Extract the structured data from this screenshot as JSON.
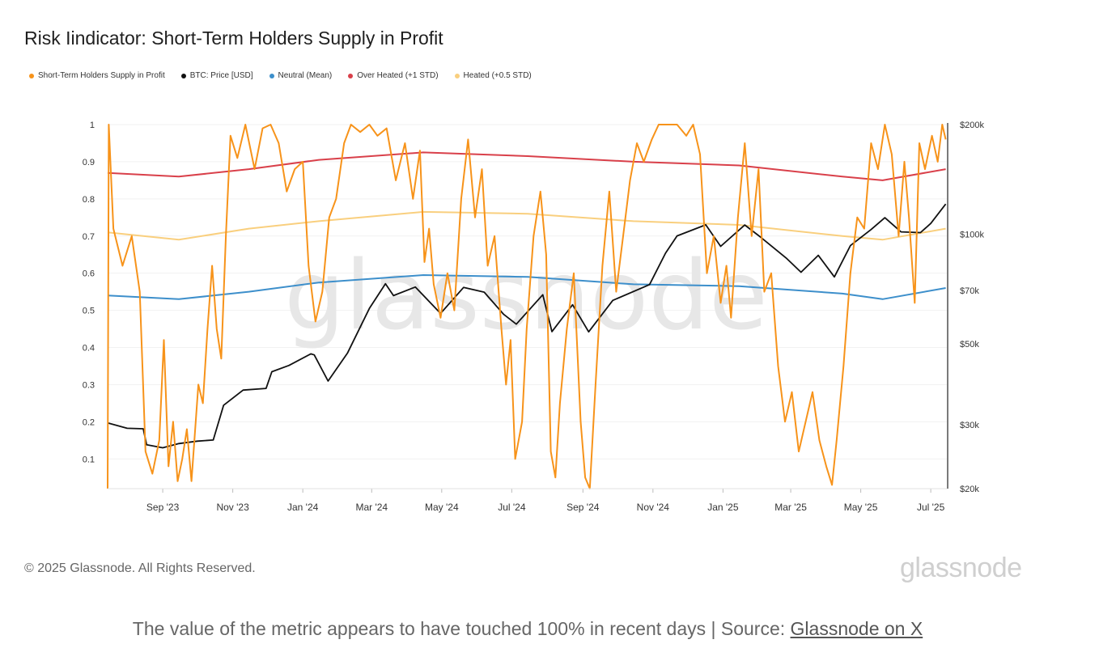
{
  "title": "Risk Iindicator: Short-Term Holders Supply in Profit",
  "legend": [
    {
      "label": "Short-Term Holders Supply in Profit",
      "color": "#f7931a"
    },
    {
      "label": "BTC: Price [USD]",
      "color": "#111111"
    },
    {
      "label": "Neutral (Mean)",
      "color": "#3d8fcb"
    },
    {
      "label": "Over Heated (+1 STD)",
      "color": "#d9404a"
    },
    {
      "label": "Heated (+0.5 STD)",
      "color": "#f9cf7e"
    }
  ],
  "watermark": "glassnode",
  "footer": {
    "copyright": "© 2025 Glassnode. All Rights Reserved.",
    "brand": "glassnode"
  },
  "caption": {
    "text": "The value of the metric appears to have touched 100% in recent days | Source: ",
    "link_text": "Glassnode on X"
  },
  "chart_data": {
    "type": "line",
    "x_tick_labels": [
      "Sep '23",
      "Nov '23",
      "Jan '24",
      "Mar '24",
      "May '24",
      "Jul '24",
      "Sep '24",
      "Nov '24",
      "Jan '25",
      "Mar '25",
      "May '25",
      "Jul '25"
    ],
    "xlim": [
      "2023-07-15",
      "2025-07-15"
    ],
    "y_left": {
      "ticks": [
        "0.1",
        "0.2",
        "0.3",
        "0.4",
        "0.5",
        "0.6",
        "0.7",
        "0.8",
        "0.9",
        "1"
      ],
      "ylim": [
        0.02,
        1.0
      ]
    },
    "y_right": {
      "ticks": [
        "$20k",
        "$30k",
        "$50k",
        "$70k",
        "$100k",
        "$200k"
      ],
      "scale": "log",
      "ylim": [
        20000,
        200000
      ]
    },
    "grid": true,
    "legend_position": "top-left",
    "series": [
      {
        "name": "Short-Term Holders Supply in Profit",
        "axis": "left",
        "color": "#f7931a",
        "points": [
          [
            "2023-07-15",
            0.02
          ],
          [
            "2023-07-16",
            1.0
          ],
          [
            "2023-07-20",
            0.72
          ],
          [
            "2023-07-28",
            0.62
          ],
          [
            "2023-08-05",
            0.7
          ],
          [
            "2023-08-12",
            0.55
          ],
          [
            "2023-08-17",
            0.12
          ],
          [
            "2023-08-23",
            0.06
          ],
          [
            "2023-08-29",
            0.15
          ],
          [
            "2023-09-02",
            0.42
          ],
          [
            "2023-09-06",
            0.08
          ],
          [
            "2023-09-10",
            0.2
          ],
          [
            "2023-09-14",
            0.04
          ],
          [
            "2023-09-18",
            0.1
          ],
          [
            "2023-09-22",
            0.18
          ],
          [
            "2023-09-26",
            0.04
          ],
          [
            "2023-10-02",
            0.3
          ],
          [
            "2023-10-06",
            0.25
          ],
          [
            "2023-10-10",
            0.45
          ],
          [
            "2023-10-14",
            0.62
          ],
          [
            "2023-10-18",
            0.45
          ],
          [
            "2023-10-22",
            0.37
          ],
          [
            "2023-10-26",
            0.7
          ],
          [
            "2023-10-30",
            0.97
          ],
          [
            "2023-11-05",
            0.91
          ],
          [
            "2023-11-12",
            1.0
          ],
          [
            "2023-11-20",
            0.88
          ],
          [
            "2023-11-27",
            0.99
          ],
          [
            "2023-12-04",
            1.0
          ],
          [
            "2023-12-11",
            0.95
          ],
          [
            "2023-12-18",
            0.82
          ],
          [
            "2023-12-25",
            0.88
          ],
          [
            "2024-01-01",
            0.9
          ],
          [
            "2024-01-06",
            0.62
          ],
          [
            "2024-01-12",
            0.47
          ],
          [
            "2024-01-18",
            0.55
          ],
          [
            "2024-01-24",
            0.75
          ],
          [
            "2024-01-30",
            0.8
          ],
          [
            "2024-02-06",
            0.95
          ],
          [
            "2024-02-12",
            1.0
          ],
          [
            "2024-02-20",
            0.98
          ],
          [
            "2024-02-28",
            1.0
          ],
          [
            "2024-03-06",
            0.97
          ],
          [
            "2024-03-14",
            0.99
          ],
          [
            "2024-03-22",
            0.85
          ],
          [
            "2024-03-30",
            0.95
          ],
          [
            "2024-04-06",
            0.8
          ],
          [
            "2024-04-12",
            0.93
          ],
          [
            "2024-04-16",
            0.63
          ],
          [
            "2024-04-20",
            0.72
          ],
          [
            "2024-04-24",
            0.57
          ],
          [
            "2024-04-30",
            0.48
          ],
          [
            "2024-05-06",
            0.6
          ],
          [
            "2024-05-12",
            0.5
          ],
          [
            "2024-05-18",
            0.8
          ],
          [
            "2024-05-24",
            0.96
          ],
          [
            "2024-05-30",
            0.75
          ],
          [
            "2024-06-05",
            0.88
          ],
          [
            "2024-06-10",
            0.62
          ],
          [
            "2024-06-16",
            0.7
          ],
          [
            "2024-06-22",
            0.45
          ],
          [
            "2024-06-26",
            0.3
          ],
          [
            "2024-06-30",
            0.42
          ],
          [
            "2024-07-04",
            0.1
          ],
          [
            "2024-07-10",
            0.2
          ],
          [
            "2024-07-14",
            0.45
          ],
          [
            "2024-07-20",
            0.7
          ],
          [
            "2024-07-26",
            0.82
          ],
          [
            "2024-07-31",
            0.65
          ],
          [
            "2024-08-04",
            0.12
          ],
          [
            "2024-08-08",
            0.05
          ],
          [
            "2024-08-12",
            0.25
          ],
          [
            "2024-08-18",
            0.45
          ],
          [
            "2024-08-24",
            0.6
          ],
          [
            "2024-08-30",
            0.2
          ],
          [
            "2024-09-03",
            0.05
          ],
          [
            "2024-09-07",
            0.02
          ],
          [
            "2024-09-12",
            0.3
          ],
          [
            "2024-09-18",
            0.62
          ],
          [
            "2024-09-24",
            0.82
          ],
          [
            "2024-09-30",
            0.55
          ],
          [
            "2024-10-06",
            0.7
          ],
          [
            "2024-10-12",
            0.85
          ],
          [
            "2024-10-18",
            0.95
          ],
          [
            "2024-10-24",
            0.9
          ],
          [
            "2024-10-31",
            0.96
          ],
          [
            "2024-11-06",
            1.0
          ],
          [
            "2024-11-14",
            1.0
          ],
          [
            "2024-11-22",
            1.0
          ],
          [
            "2024-11-30",
            0.97
          ],
          [
            "2024-12-06",
            1.0
          ],
          [
            "2024-12-12",
            0.92
          ],
          [
            "2024-12-18",
            0.6
          ],
          [
            "2024-12-24",
            0.7
          ],
          [
            "2024-12-30",
            0.52
          ],
          [
            "2025-01-04",
            0.62
          ],
          [
            "2025-01-08",
            0.48
          ],
          [
            "2025-01-14",
            0.75
          ],
          [
            "2025-01-20",
            0.95
          ],
          [
            "2025-01-26",
            0.7
          ],
          [
            "2025-02-01",
            0.88
          ],
          [
            "2025-02-06",
            0.55
          ],
          [
            "2025-02-12",
            0.6
          ],
          [
            "2025-02-18",
            0.35
          ],
          [
            "2025-02-24",
            0.2
          ],
          [
            "2025-03-02",
            0.28
          ],
          [
            "2025-03-08",
            0.12
          ],
          [
            "2025-03-14",
            0.2
          ],
          [
            "2025-03-20",
            0.28
          ],
          [
            "2025-03-26",
            0.15
          ],
          [
            "2025-04-01",
            0.08
          ],
          [
            "2025-04-06",
            0.03
          ],
          [
            "2025-04-10",
            0.15
          ],
          [
            "2025-04-16",
            0.35
          ],
          [
            "2025-04-22",
            0.6
          ],
          [
            "2025-04-28",
            0.75
          ],
          [
            "2025-05-04",
            0.72
          ],
          [
            "2025-05-10",
            0.95
          ],
          [
            "2025-05-16",
            0.88
          ],
          [
            "2025-05-22",
            1.0
          ],
          [
            "2025-05-28",
            0.92
          ],
          [
            "2025-06-03",
            0.7
          ],
          [
            "2025-06-08",
            0.9
          ],
          [
            "2025-06-12",
            0.75
          ],
          [
            "2025-06-17",
            0.52
          ],
          [
            "2025-06-21",
            0.95
          ],
          [
            "2025-06-26",
            0.88
          ],
          [
            "2025-07-02",
            0.97
          ],
          [
            "2025-07-07",
            0.9
          ],
          [
            "2025-07-11",
            1.0
          ],
          [
            "2025-07-14",
            0.96
          ]
        ]
      },
      {
        "name": "BTC: Price [USD]",
        "axis": "right",
        "color": "#111111",
        "points": [
          [
            "2023-07-15",
            30300
          ],
          [
            "2023-08-01",
            29300
          ],
          [
            "2023-08-15",
            29200
          ],
          [
            "2023-08-18",
            26400
          ],
          [
            "2023-09-01",
            25900
          ],
          [
            "2023-09-15",
            26600
          ],
          [
            "2023-10-01",
            27000
          ],
          [
            "2023-10-15",
            27200
          ],
          [
            "2023-10-24",
            33900
          ],
          [
            "2023-11-10",
            37300
          ],
          [
            "2023-11-30",
            37700
          ],
          [
            "2023-12-05",
            41900
          ],
          [
            "2023-12-20",
            43600
          ],
          [
            "2024-01-08",
            46900
          ],
          [
            "2024-01-11",
            46600
          ],
          [
            "2024-01-23",
            39500
          ],
          [
            "2024-02-09",
            47200
          ],
          [
            "2024-02-28",
            62500
          ],
          [
            "2024-03-13",
            73100
          ],
          [
            "2024-03-20",
            67800
          ],
          [
            "2024-04-08",
            71600
          ],
          [
            "2024-04-30",
            60600
          ],
          [
            "2024-05-20",
            71400
          ],
          [
            "2024-06-07",
            69300
          ],
          [
            "2024-06-24",
            60200
          ],
          [
            "2024-07-05",
            56600
          ],
          [
            "2024-07-28",
            68200
          ],
          [
            "2024-08-05",
            54000
          ],
          [
            "2024-08-23",
            64000
          ],
          [
            "2024-09-06",
            53900
          ],
          [
            "2024-09-27",
            65800
          ],
          [
            "2024-10-29",
            72700
          ],
          [
            "2024-11-12",
            88700
          ],
          [
            "2024-11-22",
            98900
          ],
          [
            "2024-12-17",
            106100
          ],
          [
            "2024-12-30",
            92600
          ],
          [
            "2025-01-20",
            106000
          ],
          [
            "2025-02-03",
            98000
          ],
          [
            "2025-02-25",
            86000
          ],
          [
            "2025-03-10",
            78600
          ],
          [
            "2025-03-25",
            87500
          ],
          [
            "2025-04-08",
            76300
          ],
          [
            "2025-04-22",
            93000
          ],
          [
            "2025-05-10",
            103000
          ],
          [
            "2025-05-22",
            111000
          ],
          [
            "2025-06-05",
            101500
          ],
          [
            "2025-06-22",
            101000
          ],
          [
            "2025-07-01",
            107000
          ],
          [
            "2025-07-14",
            121000
          ]
        ]
      },
      {
        "name": "Neutral (Mean)",
        "axis": "left",
        "color": "#3d8fcb",
        "points": [
          [
            "2023-07-15",
            0.54
          ],
          [
            "2023-09-15",
            0.53
          ],
          [
            "2023-11-15",
            0.55
          ],
          [
            "2024-01-15",
            0.575
          ],
          [
            "2024-04-15",
            0.595
          ],
          [
            "2024-07-15",
            0.59
          ],
          [
            "2024-10-15",
            0.57
          ],
          [
            "2025-01-15",
            0.565
          ],
          [
            "2025-04-15",
            0.545
          ],
          [
            "2025-05-20",
            0.53
          ],
          [
            "2025-07-14",
            0.56
          ]
        ]
      },
      {
        "name": "Over Heated (+1 STD)",
        "axis": "left",
        "color": "#d9404a",
        "points": [
          [
            "2023-07-15",
            0.87
          ],
          [
            "2023-09-15",
            0.86
          ],
          [
            "2023-11-15",
            0.88
          ],
          [
            "2024-01-15",
            0.905
          ],
          [
            "2024-04-15",
            0.925
          ],
          [
            "2024-07-15",
            0.915
          ],
          [
            "2024-10-15",
            0.9
          ],
          [
            "2025-01-15",
            0.89
          ],
          [
            "2025-04-15",
            0.86
          ],
          [
            "2025-05-20",
            0.85
          ],
          [
            "2025-07-14",
            0.88
          ]
        ]
      },
      {
        "name": "Heated (+0.5 STD)",
        "axis": "left",
        "color": "#f9cf7e",
        "points": [
          [
            "2023-07-15",
            0.71
          ],
          [
            "2023-09-15",
            0.69
          ],
          [
            "2023-11-15",
            0.72
          ],
          [
            "2024-01-15",
            0.74
          ],
          [
            "2024-04-15",
            0.765
          ],
          [
            "2024-07-15",
            0.76
          ],
          [
            "2024-10-15",
            0.74
          ],
          [
            "2025-01-15",
            0.73
          ],
          [
            "2025-04-15",
            0.7
          ],
          [
            "2025-05-20",
            0.69
          ],
          [
            "2025-07-14",
            0.72
          ]
        ]
      }
    ]
  }
}
